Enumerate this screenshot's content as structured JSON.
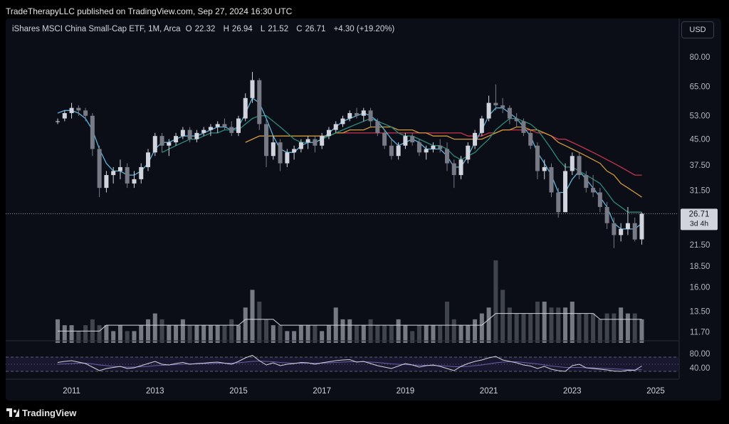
{
  "header": {
    "publisher": "TradeTherapyLLC published on TradingView.com, Sep 27, 2024 16:30 UTC"
  },
  "legend": {
    "symbol": "iShares MSCI China Small-Cap ETF, 1M, Arca",
    "open_label": "O",
    "open": "22.32",
    "high_label": "H",
    "high": "26.94",
    "low_label": "L",
    "low": "21.52",
    "close_label": "C",
    "close": "26.71",
    "change": "+4.30 (+19.20%)"
  },
  "currency_button": "USD",
  "last_price": {
    "value": "26.71",
    "countdown": "3d 4h"
  },
  "footer": {
    "brand": "TradingView"
  },
  "colors": {
    "up": "#d1d4dc",
    "down": "#787b86",
    "ma_short": "#5fb4dc",
    "ma_mid": "#2e8a7a",
    "ma_long": "#d39a3a",
    "ma_longest": "#c8344f",
    "rsi": "#d1d4dc",
    "rsi_band": "#1f1b3a"
  },
  "chart_data": {
    "type": "candlestick",
    "price_axis": {
      "scale": "log",
      "ticks": [
        80.0,
        65.0,
        53.0,
        45.0,
        37.5,
        31.5,
        26.71,
        21.5,
        18.5,
        16.0,
        13.5,
        11.7
      ]
    },
    "time_axis": {
      "ticks": [
        "2011",
        "2013",
        "2015",
        "2017",
        "2019",
        "2021",
        "2023",
        "2025"
      ]
    },
    "rsi_axis": {
      "ticks": [
        "80.00",
        "40.00"
      ]
    },
    "candles": [
      {
        "t": "2010-09",
        "o": 51,
        "h": 52,
        "l": 50,
        "c": 51
      },
      {
        "t": "2010-11",
        "o": 52,
        "h": 55,
        "l": 51,
        "c": 54
      },
      {
        "t": "2011-01",
        "o": 54,
        "h": 58,
        "l": 52,
        "c": 56
      },
      {
        "t": "2011-03",
        "o": 56,
        "h": 57,
        "l": 53,
        "c": 55
      },
      {
        "t": "2011-05",
        "o": 55,
        "h": 56,
        "l": 51,
        "c": 53
      },
      {
        "t": "2011-07",
        "o": 53,
        "h": 54,
        "l": 40,
        "c": 42
      },
      {
        "t": "2011-09",
        "o": 42,
        "h": 43,
        "l": 30,
        "c": 32
      },
      {
        "t": "2011-11",
        "o": 32,
        "h": 36,
        "l": 31,
        "c": 35
      },
      {
        "t": "2012-01",
        "o": 35,
        "h": 37,
        "l": 33,
        "c": 36
      },
      {
        "t": "2012-03",
        "o": 36,
        "h": 39,
        "l": 34,
        "c": 37
      },
      {
        "t": "2012-05",
        "o": 37,
        "h": 38,
        "l": 32,
        "c": 33
      },
      {
        "t": "2012-07",
        "o": 33,
        "h": 36,
        "l": 32,
        "c": 34
      },
      {
        "t": "2012-09",
        "o": 34,
        "h": 38,
        "l": 33,
        "c": 37
      },
      {
        "t": "2012-11",
        "o": 37,
        "h": 42,
        "l": 36,
        "c": 41
      },
      {
        "t": "2013-01",
        "o": 41,
        "h": 47,
        "l": 40,
        "c": 46
      },
      {
        "t": "2013-03",
        "o": 46,
        "h": 47,
        "l": 41,
        "c": 43
      },
      {
        "t": "2013-05",
        "o": 43,
        "h": 45,
        "l": 40,
        "c": 44
      },
      {
        "t": "2013-07",
        "o": 44,
        "h": 47,
        "l": 43,
        "c": 46
      },
      {
        "t": "2013-09",
        "o": 46,
        "h": 49,
        "l": 45,
        "c": 48
      },
      {
        "t": "2013-11",
        "o": 48,
        "h": 49,
        "l": 44,
        "c": 45
      },
      {
        "t": "2014-01",
        "o": 45,
        "h": 48,
        "l": 44,
        "c": 47
      },
      {
        "t": "2014-03",
        "o": 47,
        "h": 49,
        "l": 46,
        "c": 48
      },
      {
        "t": "2014-05",
        "o": 48,
        "h": 50,
        "l": 46,
        "c": 49
      },
      {
        "t": "2014-07",
        "o": 49,
        "h": 51,
        "l": 47,
        "c": 50
      },
      {
        "t": "2014-09",
        "o": 50,
        "h": 52,
        "l": 48,
        "c": 49
      },
      {
        "t": "2014-11",
        "o": 49,
        "h": 51,
        "l": 46,
        "c": 47
      },
      {
        "t": "2015-01",
        "o": 47,
        "h": 53,
        "l": 46,
        "c": 52
      },
      {
        "t": "2015-03",
        "o": 52,
        "h": 62,
        "l": 51,
        "c": 60
      },
      {
        "t": "2015-05",
        "o": 60,
        "h": 72,
        "l": 58,
        "c": 68
      },
      {
        "t": "2015-07",
        "o": 68,
        "h": 69,
        "l": 48,
        "c": 50
      },
      {
        "t": "2015-09",
        "o": 50,
        "h": 52,
        "l": 37,
        "c": 40
      },
      {
        "t": "2015-11",
        "o": 40,
        "h": 46,
        "l": 39,
        "c": 44
      },
      {
        "t": "2016-01",
        "o": 44,
        "h": 45,
        "l": 36,
        "c": 38
      },
      {
        "t": "2016-03",
        "o": 38,
        "h": 42,
        "l": 37,
        "c": 41
      },
      {
        "t": "2016-05",
        "o": 41,
        "h": 43,
        "l": 39,
        "c": 42
      },
      {
        "t": "2016-07",
        "o": 42,
        "h": 45,
        "l": 41,
        "c": 44
      },
      {
        "t": "2016-09",
        "o": 44,
        "h": 46,
        "l": 42,
        "c": 45
      },
      {
        "t": "2016-11",
        "o": 45,
        "h": 46,
        "l": 41,
        "c": 43
      },
      {
        "t": "2017-01",
        "o": 43,
        "h": 47,
        "l": 42,
        "c": 46
      },
      {
        "t": "2017-03",
        "o": 46,
        "h": 49,
        "l": 45,
        "c": 48
      },
      {
        "t": "2017-05",
        "o": 48,
        "h": 51,
        "l": 47,
        "c": 50
      },
      {
        "t": "2017-07",
        "o": 50,
        "h": 53,
        "l": 49,
        "c": 52
      },
      {
        "t": "2017-09",
        "o": 52,
        "h": 55,
        "l": 51,
        "c": 54
      },
      {
        "t": "2017-11",
        "o": 54,
        "h": 56,
        "l": 52,
        "c": 53
      },
      {
        "t": "2018-01",
        "o": 53,
        "h": 56,
        "l": 51,
        "c": 55
      },
      {
        "t": "2018-03",
        "o": 55,
        "h": 56,
        "l": 49,
        "c": 51
      },
      {
        "t": "2018-05",
        "o": 51,
        "h": 52,
        "l": 46,
        "c": 47
      },
      {
        "t": "2018-07",
        "o": 47,
        "h": 48,
        "l": 42,
        "c": 43
      },
      {
        "t": "2018-09",
        "o": 43,
        "h": 45,
        "l": 39,
        "c": 40
      },
      {
        "t": "2018-11",
        "o": 40,
        "h": 44,
        "l": 39,
        "c": 43
      },
      {
        "t": "2019-01",
        "o": 43,
        "h": 47,
        "l": 42,
        "c": 46
      },
      {
        "t": "2019-03",
        "o": 46,
        "h": 47,
        "l": 43,
        "c": 44
      },
      {
        "t": "2019-05",
        "o": 44,
        "h": 45,
        "l": 40,
        "c": 41
      },
      {
        "t": "2019-07",
        "o": 41,
        "h": 43,
        "l": 39,
        "c": 42
      },
      {
        "t": "2019-09",
        "o": 42,
        "h": 44,
        "l": 41,
        "c": 43
      },
      {
        "t": "2019-11",
        "o": 43,
        "h": 45,
        "l": 41,
        "c": 42
      },
      {
        "t": "2020-01",
        "o": 42,
        "h": 44,
        "l": 36,
        "c": 38
      },
      {
        "t": "2020-03",
        "o": 38,
        "h": 39,
        "l": 32,
        "c": 35
      },
      {
        "t": "2020-05",
        "o": 35,
        "h": 40,
        "l": 34,
        "c": 39
      },
      {
        "t": "2020-07",
        "o": 39,
        "h": 44,
        "l": 38,
        "c": 43
      },
      {
        "t": "2020-09",
        "o": 43,
        "h": 48,
        "l": 42,
        "c": 47
      },
      {
        "t": "2020-11",
        "o": 47,
        "h": 53,
        "l": 46,
        "c": 52
      },
      {
        "t": "2021-01",
        "o": 52,
        "h": 61,
        "l": 51,
        "c": 58
      },
      {
        "t": "2021-03",
        "o": 58,
        "h": 66,
        "l": 55,
        "c": 57
      },
      {
        "t": "2021-05",
        "o": 57,
        "h": 60,
        "l": 54,
        "c": 56
      },
      {
        "t": "2021-07",
        "o": 56,
        "h": 57,
        "l": 50,
        "c": 52
      },
      {
        "t": "2021-09",
        "o": 52,
        "h": 54,
        "l": 49,
        "c": 51
      },
      {
        "t": "2021-11",
        "o": 51,
        "h": 52,
        "l": 46,
        "c": 47
      },
      {
        "t": "2022-01",
        "o": 47,
        "h": 48,
        "l": 42,
        "c": 43
      },
      {
        "t": "2022-03",
        "o": 43,
        "h": 44,
        "l": 34,
        "c": 36
      },
      {
        "t": "2022-05",
        "o": 36,
        "h": 39,
        "l": 34,
        "c": 37
      },
      {
        "t": "2022-07",
        "o": 37,
        "h": 38,
        "l": 30,
        "c": 31
      },
      {
        "t": "2022-09",
        "o": 31,
        "h": 32,
        "l": 26,
        "c": 27
      },
      {
        "t": "2022-11",
        "o": 27,
        "h": 38,
        "l": 27,
        "c": 36
      },
      {
        "t": "2023-01",
        "o": 36,
        "h": 41,
        "l": 35,
        "c": 40
      },
      {
        "t": "2023-03",
        "o": 40,
        "h": 41,
        "l": 34,
        "c": 35
      },
      {
        "t": "2023-05",
        "o": 35,
        "h": 36,
        "l": 31,
        "c": 32
      },
      {
        "t": "2023-07",
        "o": 32,
        "h": 35,
        "l": 30,
        "c": 31
      },
      {
        "t": "2023-09",
        "o": 31,
        "h": 32,
        "l": 27,
        "c": 28
      },
      {
        "t": "2023-11",
        "o": 28,
        "h": 29,
        "l": 24,
        "c": 25
      },
      {
        "t": "2024-01",
        "o": 25,
        "h": 26,
        "l": 21,
        "c": 23
      },
      {
        "t": "2024-03",
        "o": 23,
        "h": 25,
        "l": 22,
        "c": 24
      },
      {
        "t": "2024-05",
        "o": 24,
        "h": 28,
        "l": 23,
        "c": 25
      },
      {
        "t": "2024-07",
        "o": 25,
        "h": 26,
        "l": 22,
        "c": 22.3
      },
      {
        "t": "2024-09",
        "o": 22.32,
        "h": 26.94,
        "l": 21.52,
        "c": 26.71
      }
    ],
    "moving_averages": [
      {
        "values": [
          54,
          55,
          55,
          54,
          52,
          48,
          42,
          38,
          36,
          36,
          35,
          35,
          36,
          38,
          42,
          44,
          44,
          45,
          46,
          46,
          46,
          47,
          48,
          49,
          49,
          48,
          49,
          54,
          60,
          58,
          52,
          46,
          42,
          41,
          41,
          43,
          44,
          44,
          45,
          47,
          49,
          51,
          52,
          53,
          54,
          53,
          51,
          48,
          45,
          43,
          44,
          45,
          44,
          42,
          42,
          42,
          40,
          37,
          37,
          40,
          44,
          48,
          53,
          56,
          56,
          54,
          52,
          49,
          46,
          41,
          38,
          35,
          31,
          31,
          34,
          36,
          34,
          32,
          30,
          28,
          25,
          24,
          24,
          24,
          25
        ]
      },
      {
        "values": [
          null,
          null,
          null,
          null,
          null,
          null,
          null,
          null,
          null,
          null,
          null,
          null,
          null,
          null,
          null,
          41,
          42,
          43,
          44,
          45,
          45,
          46,
          47,
          47,
          48,
          48,
          48,
          50,
          52,
          53,
          53,
          51,
          49,
          47,
          45,
          44,
          44,
          44,
          45,
          46,
          47,
          48,
          49,
          50,
          51,
          52,
          51,
          50,
          49,
          47,
          46,
          46,
          45,
          44,
          43,
          43,
          42,
          40,
          39,
          40,
          41,
          43,
          45,
          48,
          50,
          52,
          52,
          51,
          50,
          48,
          45,
          42,
          39,
          37,
          37,
          36,
          35,
          34,
          33,
          31,
          29,
          28,
          27,
          27,
          27
        ]
      },
      {
        "values": [
          null,
          null,
          null,
          null,
          null,
          null,
          null,
          null,
          null,
          null,
          null,
          null,
          null,
          null,
          null,
          null,
          null,
          null,
          null,
          null,
          null,
          null,
          null,
          null,
          null,
          null,
          null,
          44,
          45,
          46,
          46,
          46,
          46,
          46,
          46,
          46,
          46,
          46,
          46,
          46,
          47,
          47,
          48,
          48,
          48,
          49,
          49,
          49,
          49,
          48,
          48,
          48,
          47,
          47,
          46,
          46,
          46,
          45,
          45,
          45,
          45,
          45,
          46,
          47,
          48,
          48,
          49,
          49,
          48,
          48,
          47,
          46,
          44,
          43,
          42,
          41,
          40,
          39,
          38,
          36,
          35,
          33,
          32,
          31,
          30
        ]
      },
      {
        "values": [
          null,
          null,
          null,
          null,
          null,
          null,
          null,
          null,
          null,
          null,
          null,
          null,
          null,
          null,
          null,
          null,
          null,
          null,
          null,
          null,
          null,
          null,
          null,
          null,
          null,
          null,
          null,
          null,
          null,
          null,
          null,
          null,
          null,
          null,
          null,
          null,
          null,
          null,
          null,
          null,
          47,
          47,
          47,
          47,
          47,
          47,
          47,
          47,
          47,
          47,
          47,
          47,
          47,
          47,
          47,
          47,
          47,
          47,
          47,
          46,
          46,
          46,
          47,
          47,
          48,
          48,
          48,
          48,
          48,
          47,
          47,
          46,
          45,
          45,
          44,
          43,
          42,
          41,
          40,
          39,
          38,
          37,
          36,
          35,
          35
        ]
      }
    ],
    "volume": [
      4,
      3,
      3,
      2,
      3,
      4,
      3,
      3,
      2,
      3,
      2,
      2,
      3,
      4,
      5,
      4,
      3,
      3,
      4,
      3,
      3,
      3,
      3,
      3,
      3,
      4,
      3,
      6,
      9,
      7,
      4,
      3,
      3,
      2,
      2,
      3,
      3,
      3,
      2,
      3,
      6,
      4,
      4,
      3,
      3,
      4,
      3,
      3,
      3,
      4,
      3,
      2,
      3,
      3,
      3,
      3,
      7,
      4,
      3,
      3,
      4,
      5,
      6,
      14,
      9,
      6,
      5,
      5,
      5,
      7,
      7,
      6,
      6,
      6,
      7,
      5,
      5,
      5,
      4,
      5,
      5,
      6,
      5,
      5,
      4
    ],
    "volume_average": [
      2,
      2,
      2,
      2,
      2,
      2,
      2,
      3,
      3,
      3,
      3,
      3,
      3,
      3,
      3,
      3,
      3,
      3,
      3,
      3,
      3,
      3,
      3,
      3,
      3,
      3,
      3,
      4,
      4,
      4,
      4,
      4,
      3,
      3,
      3,
      3,
      3,
      3,
      3,
      3,
      3,
      3,
      3,
      3,
      3,
      3,
      3,
      3,
      3,
      3,
      3,
      3,
      3,
      3,
      3,
      3,
      3,
      3,
      3,
      3,
      3,
      3,
      4,
      5,
      5,
      5,
      5,
      5,
      5,
      5,
      5,
      5,
      5,
      5,
      5,
      5,
      5,
      5,
      4,
      4,
      4,
      4,
      4,
      4,
      4
    ],
    "rsi": [
      55,
      58,
      60,
      56,
      52,
      42,
      32,
      38,
      41,
      44,
      38,
      40,
      46,
      52,
      58,
      50,
      48,
      52,
      55,
      50,
      52,
      53,
      55,
      56,
      53,
      50,
      58,
      68,
      75,
      60,
      48,
      54,
      46,
      50,
      52,
      55,
      54,
      50,
      54,
      57,
      60,
      62,
      63,
      56,
      58,
      52,
      46,
      42,
      38,
      45,
      52,
      48,
      42,
      46,
      48,
      44,
      38,
      32,
      44,
      52,
      58,
      62,
      68,
      72,
      62,
      58,
      54,
      48,
      45,
      38,
      44,
      36,
      32,
      30,
      46,
      50,
      40,
      38,
      36,
      34,
      31,
      30,
      33,
      33,
      45
    ],
    "rsi_ma": [
      50,
      51,
      52,
      53,
      53,
      51,
      48,
      46,
      44,
      43,
      42,
      42,
      43,
      44,
      46,
      47,
      48,
      49,
      50,
      51,
      51,
      52,
      52,
      53,
      53,
      53,
      54,
      56,
      58,
      59,
      58,
      57,
      55,
      54,
      53,
      53,
      53,
      53,
      53,
      54,
      55,
      56,
      57,
      57,
      57,
      56,
      55,
      53,
      51,
      50,
      49,
      48,
      47,
      47,
      46,
      46,
      45,
      43,
      43,
      44,
      46,
      48,
      51,
      54,
      56,
      57,
      57,
      55,
      53,
      51,
      48,
      45,
      43,
      41,
      41,
      41,
      40,
      40,
      39,
      38,
      37,
      36,
      35,
      34,
      35
    ]
  }
}
